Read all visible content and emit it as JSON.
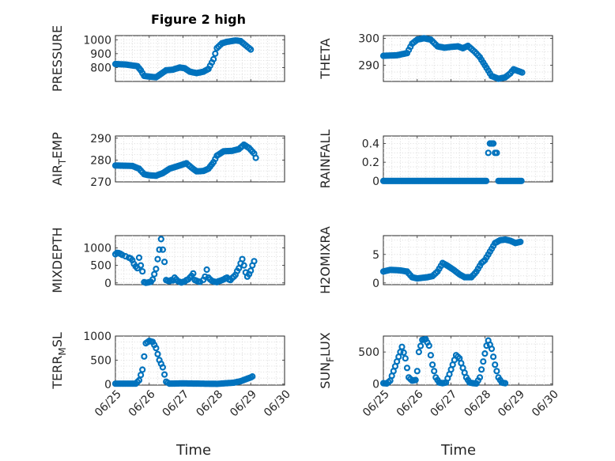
{
  "figure": {
    "title": "Figure 2 high",
    "marker_color": "#0072bd"
  },
  "chart_data": [
    {
      "id": "pressure",
      "type": "scatter",
      "title": "Figure 2 high",
      "ylabel": "PRESSURE",
      "ylabel_sub": "",
      "ylabel_suffix": "",
      "xlabel": "",
      "ylim": [
        700,
        1030
      ],
      "yticks": [
        800,
        900,
        1000
      ],
      "xlim": [
        0,
        5
      ],
      "xticks": [
        0,
        1,
        2,
        3,
        4,
        5
      ],
      "xticklabels": [],
      "grid": true,
      "anchors": [
        [
          0.0,
          825
        ],
        [
          0.3,
          822
        ],
        [
          0.5,
          815
        ],
        [
          0.65,
          810
        ],
        [
          0.75,
          780
        ],
        [
          0.85,
          740
        ],
        [
          1.0,
          735
        ],
        [
          1.2,
          730
        ],
        [
          1.35,
          755
        ],
        [
          1.5,
          780
        ],
        [
          1.7,
          785
        ],
        [
          1.9,
          800
        ],
        [
          2.05,
          795
        ],
        [
          2.2,
          770
        ],
        [
          2.4,
          760
        ],
        [
          2.6,
          770
        ],
        [
          2.75,
          790
        ],
        [
          2.9,
          860
        ],
        [
          3.0,
          940
        ],
        [
          3.15,
          975
        ],
        [
          3.3,
          985
        ],
        [
          3.55,
          995
        ],
        [
          3.7,
          990
        ],
        [
          3.85,
          960
        ],
        [
          4.0,
          930
        ]
      ]
    },
    {
      "id": "theta",
      "type": "scatter",
      "title": "",
      "ylabel": "THETA",
      "ylabel_sub": "",
      "ylabel_suffix": "",
      "xlabel": "",
      "ylim": [
        284,
        301
      ],
      "yticks": [
        290,
        300
      ],
      "xlim": [
        0,
        5
      ],
      "xticks": [
        0,
        1,
        2,
        3,
        4,
        5
      ],
      "xticklabels": [],
      "grid": true,
      "anchors": [
        [
          0.0,
          293.5
        ],
        [
          0.4,
          293.7
        ],
        [
          0.7,
          294.5
        ],
        [
          0.85,
          298
        ],
        [
          1.0,
          299.5
        ],
        [
          1.2,
          300
        ],
        [
          1.4,
          299.5
        ],
        [
          1.6,
          297
        ],
        [
          1.8,
          296.5
        ],
        [
          2.0,
          296.8
        ],
        [
          2.2,
          297
        ],
        [
          2.35,
          296.3
        ],
        [
          2.5,
          297.2
        ],
        [
          2.7,
          295
        ],
        [
          2.85,
          293
        ],
        [
          3.0,
          290
        ],
        [
          3.2,
          286
        ],
        [
          3.4,
          285
        ],
        [
          3.6,
          285.5
        ],
        [
          3.75,
          287
        ],
        [
          3.85,
          288.5
        ],
        [
          3.95,
          288
        ],
        [
          4.1,
          287.3
        ]
      ]
    },
    {
      "id": "air_temp",
      "type": "scatter",
      "title": "",
      "ylabel": "AIR",
      "ylabel_sub": "T",
      "ylabel_suffix": "EMP",
      "xlabel": "",
      "ylim": [
        270,
        291
      ],
      "yticks": [
        270,
        280,
        290
      ],
      "xlim": [
        0,
        5
      ],
      "xticks": [
        0,
        1,
        2,
        3,
        4,
        5
      ],
      "xticklabels": [],
      "grid": true,
      "anchors": [
        [
          0.0,
          277.5
        ],
        [
          0.5,
          277.3
        ],
        [
          0.7,
          276
        ],
        [
          0.85,
          273.5
        ],
        [
          1.0,
          273
        ],
        [
          1.2,
          272.8
        ],
        [
          1.4,
          274
        ],
        [
          1.6,
          276
        ],
        [
          1.9,
          277.5
        ],
        [
          2.1,
          278.5
        ],
        [
          2.25,
          276.5
        ],
        [
          2.4,
          274.8
        ],
        [
          2.6,
          275
        ],
        [
          2.75,
          276
        ],
        [
          2.9,
          279
        ],
        [
          3.0,
          282
        ],
        [
          3.2,
          284
        ],
        [
          3.45,
          284.2
        ],
        [
          3.65,
          285
        ],
        [
          3.8,
          287
        ],
        [
          3.95,
          285.5
        ],
        [
          4.1,
          283
        ],
        [
          4.15,
          281
        ]
      ]
    },
    {
      "id": "rainfall",
      "type": "scatter",
      "title": "",
      "ylabel": "RAINFALL",
      "ylabel_sub": "",
      "ylabel_suffix": "",
      "xlabel": "",
      "ylim": [
        -0.01,
        0.48
      ],
      "yticks": [
        0,
        0.2,
        0.4
      ],
      "xlim": [
        0,
        5
      ],
      "xticks": [
        0,
        1,
        2,
        3,
        4,
        5
      ],
      "xticklabels": [],
      "grid": true,
      "zero_segments": [
        [
          0.0,
          3.05
        ],
        [
          3.4,
          4.1
        ]
      ],
      "extra_points": [
        [
          3.1,
          0.3
        ],
        [
          3.15,
          0.4
        ],
        [
          3.2,
          0.4
        ],
        [
          3.25,
          0.4
        ],
        [
          3.3,
          0.3
        ],
        [
          3.35,
          0.3
        ]
      ]
    },
    {
      "id": "mixdepth",
      "type": "scatter",
      "title": "",
      "ylabel": "MIXDEPTH",
      "ylabel_sub": "",
      "ylabel_suffix": "",
      "xlabel": "",
      "ylim": [
        -50,
        1350
      ],
      "yticks": [
        0,
        500,
        1000
      ],
      "xlim": [
        0,
        5
      ],
      "xticks": [
        0,
        1,
        2,
        3,
        4,
        5
      ],
      "xticklabels": [],
      "grid": true,
      "points": [
        [
          0.0,
          820
        ],
        [
          0.05,
          860
        ],
        [
          0.1,
          850
        ],
        [
          0.15,
          830
        ],
        [
          0.2,
          800
        ],
        [
          0.3,
          760
        ],
        [
          0.4,
          720
        ],
        [
          0.45,
          700
        ],
        [
          0.5,
          650
        ],
        [
          0.55,
          540
        ],
        [
          0.6,
          470
        ],
        [
          0.65,
          420
        ],
        [
          0.7,
          720
        ],
        [
          0.75,
          500
        ],
        [
          0.8,
          330
        ],
        [
          0.85,
          20
        ],
        [
          0.9,
          5
        ],
        [
          0.95,
          10
        ],
        [
          1.0,
          20
        ],
        [
          1.05,
          30
        ],
        [
          1.1,
          100
        ],
        [
          1.15,
          250
        ],
        [
          1.2,
          400
        ],
        [
          1.25,
          680
        ],
        [
          1.3,
          950
        ],
        [
          1.35,
          1250
        ],
        [
          1.4,
          950
        ],
        [
          1.45,
          600
        ],
        [
          1.5,
          80
        ],
        [
          1.55,
          60
        ],
        [
          1.6,
          50
        ],
        [
          1.65,
          80
        ],
        [
          1.7,
          70
        ],
        [
          1.75,
          150
        ],
        [
          1.8,
          100
        ],
        [
          1.85,
          50
        ],
        [
          1.9,
          30
        ],
        [
          1.95,
          10
        ],
        [
          2.0,
          30
        ],
        [
          2.05,
          40
        ],
        [
          2.1,
          80
        ],
        [
          2.15,
          100
        ],
        [
          2.2,
          150
        ],
        [
          2.25,
          200
        ],
        [
          2.3,
          270
        ],
        [
          2.35,
          80
        ],
        [
          2.4,
          60
        ],
        [
          2.45,
          40
        ],
        [
          2.5,
          30
        ],
        [
          2.6,
          90
        ],
        [
          2.65,
          180
        ],
        [
          2.7,
          380
        ],
        [
          2.75,
          150
        ],
        [
          2.8,
          100
        ],
        [
          2.85,
          60
        ],
        [
          2.9,
          40
        ],
        [
          2.95,
          30
        ],
        [
          3.0,
          20
        ],
        [
          3.05,
          50
        ],
        [
          3.1,
          60
        ],
        [
          3.15,
          80
        ],
        [
          3.2,
          100
        ],
        [
          3.25,
          130
        ],
        [
          3.3,
          150
        ],
        [
          3.35,
          100
        ],
        [
          3.4,
          80
        ],
        [
          3.45,
          140
        ],
        [
          3.5,
          180
        ],
        [
          3.55,
          230
        ],
        [
          3.6,
          340
        ],
        [
          3.65,
          420
        ],
        [
          3.7,
          560
        ],
        [
          3.75,
          680
        ],
        [
          3.8,
          500
        ],
        [
          3.85,
          300
        ],
        [
          3.9,
          180
        ],
        [
          3.95,
          250
        ],
        [
          4.0,
          350
        ],
        [
          4.05,
          500
        ],
        [
          4.1,
          620
        ]
      ]
    },
    {
      "id": "h2omixra",
      "type": "scatter",
      "title": "",
      "ylabel": "H2OMIXRA",
      "ylabel_sub": "",
      "ylabel_suffix": "",
      "xlabel": "",
      "ylim": [
        -0.3,
        8.3
      ],
      "yticks": [
        0,
        5
      ],
      "xlim": [
        0,
        5
      ],
      "xticks": [
        0,
        1,
        2,
        3,
        4,
        5
      ],
      "xticklabels": [],
      "grid": true,
      "anchors": [
        [
          0.0,
          2.0
        ],
        [
          0.2,
          2.3
        ],
        [
          0.5,
          2.2
        ],
        [
          0.7,
          2.0
        ],
        [
          0.85,
          1.0
        ],
        [
          1.0,
          0.8
        ],
        [
          1.15,
          0.9
        ],
        [
          1.3,
          1.0
        ],
        [
          1.45,
          1.2
        ],
        [
          1.6,
          2.0
        ],
        [
          1.75,
          3.5
        ],
        [
          1.9,
          3.0
        ],
        [
          2.1,
          2.2
        ],
        [
          2.25,
          1.5
        ],
        [
          2.4,
          1.0
        ],
        [
          2.6,
          1.0
        ],
        [
          2.75,
          2.0
        ],
        [
          2.9,
          3.5
        ],
        [
          3.0,
          4.0
        ],
        [
          3.15,
          5.5
        ],
        [
          3.3,
          7.0
        ],
        [
          3.45,
          7.5
        ],
        [
          3.6,
          7.6
        ],
        [
          3.75,
          7.4
        ],
        [
          3.9,
          7.0
        ],
        [
          4.05,
          7.2
        ]
      ]
    },
    {
      "id": "terr_msl",
      "type": "scatter",
      "title": "",
      "ylabel": "TERR",
      "ylabel_sub": "M",
      "ylabel_suffix": "SL",
      "xlabel": "Time",
      "ylim": [
        -20,
        1000
      ],
      "yticks": [
        0,
        500,
        1000
      ],
      "xlim": [
        0,
        5
      ],
      "xticks": [
        0,
        1,
        2,
        3,
        4,
        5
      ],
      "xticklabels": [
        "06/25",
        "06/26",
        "06/27",
        "06/28",
        "06/29",
        "06/30"
      ],
      "grid": true,
      "anchors": [
        [
          0.0,
          10
        ],
        [
          0.6,
          10
        ],
        [
          0.7,
          80
        ],
        [
          0.8,
          300
        ],
        [
          0.9,
          850
        ],
        [
          1.0,
          900
        ],
        [
          1.1,
          880
        ],
        [
          1.2,
          750
        ],
        [
          1.3,
          500
        ],
        [
          1.4,
          350
        ],
        [
          1.5,
          50
        ],
        [
          1.6,
          10
        ],
        [
          2.0,
          15
        ],
        [
          2.5,
          10
        ],
        [
          3.0,
          5
        ],
        [
          3.5,
          30
        ],
        [
          3.7,
          60
        ],
        [
          3.85,
          100
        ],
        [
          4.0,
          140
        ],
        [
          4.05,
          160
        ]
      ]
    },
    {
      "id": "sun_flux",
      "type": "scatter",
      "title": "",
      "ylabel": "SUN",
      "ylabel_sub": "F",
      "ylabel_suffix": "LUX",
      "xlabel": "Time",
      "ylim": [
        -20,
        750
      ],
      "yticks": [
        0,
        500
      ],
      "xlim": [
        0,
        5
      ],
      "xticks": [
        0,
        1,
        2,
        3,
        4,
        5
      ],
      "xticklabels": [
        "06/25",
        "06/26",
        "06/27",
        "06/28",
        "06/29",
        "06/30"
      ],
      "grid": true,
      "anchors": [
        [
          0.0,
          10
        ],
        [
          0.1,
          5
        ],
        [
          0.2,
          50
        ],
        [
          0.3,
          200
        ],
        [
          0.4,
          350
        ],
        [
          0.5,
          500
        ],
        [
          0.55,
          580
        ],
        [
          0.65,
          400
        ],
        [
          0.75,
          100
        ],
        [
          0.85,
          50
        ],
        [
          0.95,
          60
        ],
        [
          1.0,
          200
        ],
        [
          1.05,
          500
        ],
        [
          1.15,
          690
        ],
        [
          1.25,
          700
        ],
        [
          1.35,
          600
        ],
        [
          1.45,
          300
        ],
        [
          1.55,
          100
        ],
        [
          1.65,
          20
        ],
        [
          1.75,
          10
        ],
        [
          1.85,
          20
        ],
        [
          1.95,
          150
        ],
        [
          2.05,
          300
        ],
        [
          2.15,
          450
        ],
        [
          2.25,
          400
        ],
        [
          2.35,
          250
        ],
        [
          2.45,
          100
        ],
        [
          2.55,
          20
        ],
        [
          2.65,
          10
        ],
        [
          2.75,
          5
        ],
        [
          2.85,
          100
        ],
        [
          2.95,
          350
        ],
        [
          3.05,
          600
        ],
        [
          3.1,
          680
        ],
        [
          3.2,
          550
        ],
        [
          3.3,
          300
        ],
        [
          3.4,
          100
        ],
        [
          3.5,
          20
        ],
        [
          3.6,
          10
        ]
      ]
    }
  ]
}
